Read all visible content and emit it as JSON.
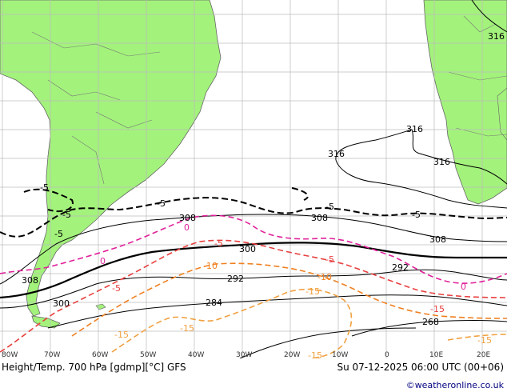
{
  "footer": {
    "title": "Height/Temp. 700 hPa [gdmp][°C] GFS",
    "valid_time": "Su 07-12-2025 06:00 UTC (00+06)",
    "credit": "©weatheronline.co.uk"
  },
  "lon_labels": [
    "80W",
    "70W",
    "60W",
    "50W",
    "40W",
    "30W",
    "20W",
    "10W",
    "0",
    "10E",
    "20E"
  ],
  "height_labels": [
    "316",
    "316",
    "316",
    "316",
    "308",
    "308",
    "308",
    "308",
    "300",
    "300",
    "292",
    "292",
    "284",
    "268"
  ],
  "temp_labels": [
    "-5",
    "-5",
    "-5",
    "-5",
    "-5",
    "-5",
    "-5",
    "0",
    "0",
    "0",
    "-5",
    "-5",
    "-10",
    "-10",
    "-15",
    "-15",
    "-15",
    "-15",
    "-15",
    "-15"
  ],
  "colors": {
    "land": "#a3f27c",
    "ocean": "#ffffff",
    "grid": "#bbbbbb",
    "height_contour": "#000000",
    "temp_minus5": "#000000",
    "temp_0": "#e0209a",
    "temp_neg5_red": "#e84040",
    "temp_neg10": "#f08020",
    "temp_neg15": "#f0a040"
  }
}
